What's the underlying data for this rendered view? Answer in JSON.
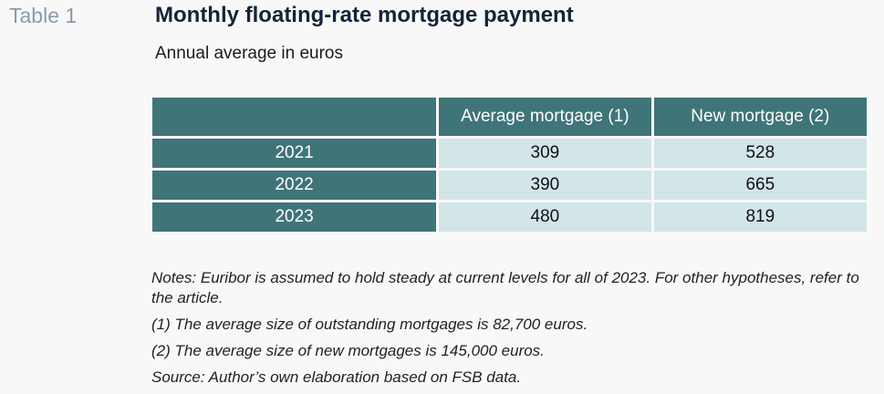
{
  "table_label": "Table 1",
  "title": "Monthly floating-rate mortgage payment",
  "subtitle": "Annual average in euros",
  "table": {
    "header": [
      "",
      "Average mortgage (1)",
      "New mortgage (2)"
    ],
    "rows": [
      {
        "year": "2021",
        "average": "309",
        "new": "528"
      },
      {
        "year": "2022",
        "average": "390",
        "new": "665"
      },
      {
        "year": "2023",
        "average": "480",
        "new": "819"
      }
    ]
  },
  "notes": [
    "Notes: Euribor is assumed to hold steady at current levels for all of 2023. For other hypotheses, refer to the article.",
    "(1) The average size of outstanding mortgages is 82,700 euros.",
    "(2) The average size of new mortgages is 145,000 euros.",
    "Source: Author’s own elaboration based on FSB data."
  ],
  "colors": {
    "header_bg": "#3f7479",
    "cell_bg": "#d2e5e8",
    "label_color": "#8a9bb0"
  }
}
